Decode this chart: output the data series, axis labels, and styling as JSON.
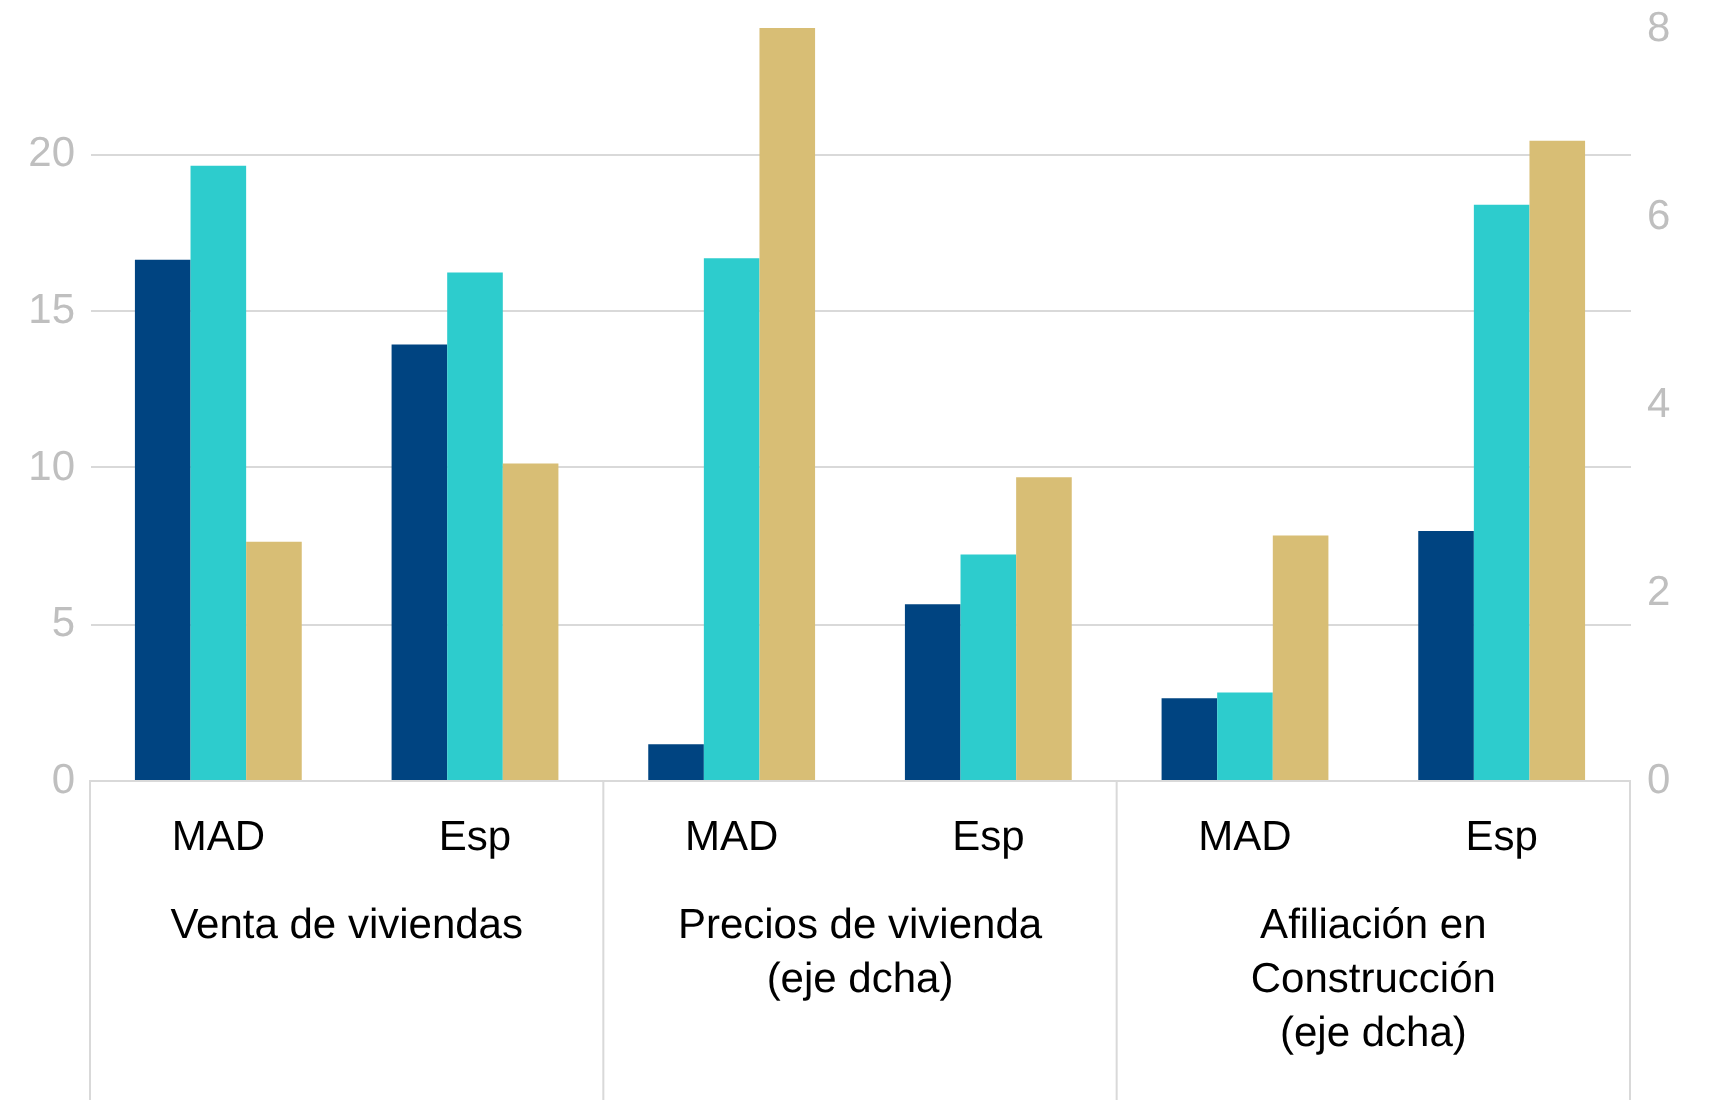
{
  "chart_data": {
    "type": "bar",
    "categories": [
      "MAD",
      "Esp",
      "MAD",
      "Esp",
      "MAD",
      "Esp"
    ],
    "series": [
      {
        "color": "#004481",
        "values": [
          16.6,
          13.9,
          null,
          null,
          null,
          null
        ]
      },
      {
        "color": "#2dcccd",
        "values": [
          19.6,
          16.2,
          null,
          null,
          null,
          null
        ]
      },
      {
        "color": "#d8be75",
        "values": [
          7.6,
          10.1,
          null,
          null,
          null,
          null
        ]
      },
      {
        "color": "#004481",
        "axis": "y2",
        "values": [
          null,
          null,
          0.38,
          1.87,
          0.87,
          2.65
        ]
      },
      {
        "color": "#2dcccd",
        "axis": "y2",
        "values": [
          null,
          null,
          5.55,
          2.4,
          0.93,
          6.12
        ]
      },
      {
        "color": "#d8be75",
        "axis": "y2",
        "values": [
          null,
          null,
          8.0,
          3.22,
          2.6,
          6.8
        ]
      }
    ],
    "ylim": [
      0,
      24
    ],
    "yticks": [
      0,
      5,
      10,
      15,
      20
    ],
    "y2lim": [
      0,
      8
    ],
    "y2ticks": [
      0,
      2,
      4,
      6,
      8
    ],
    "grid": "y",
    "annotations": [
      "Venta de viviendas",
      "Precios de vivienda\n(eje dcha)",
      "Afiliación en\nConstrucción\n(eje dcha)"
    ]
  }
}
